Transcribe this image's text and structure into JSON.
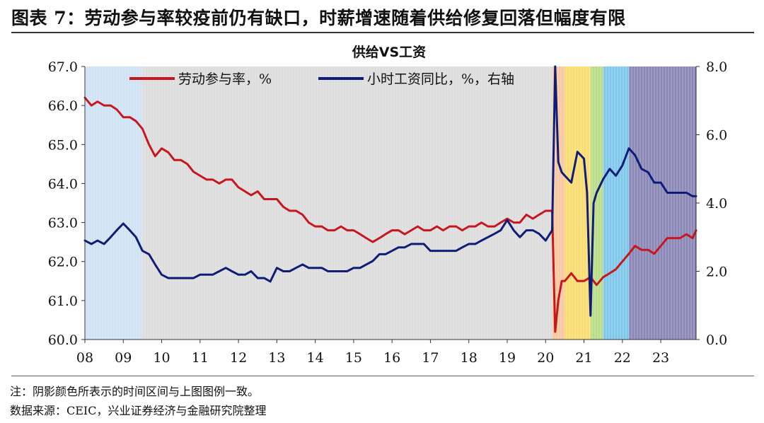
{
  "figure_title": "图表 7：劳动参与率较疫前仍有缺口，时薪增速随着供给修复回落但幅度有限",
  "note": "注：阴影颜色所表示的时间区间与上图图例一致。",
  "source": "数据来源：CEIC，兴业证券经济与金融研究院整理",
  "colors": {
    "lfpr": "#c8161e",
    "wage": "#0f1c78",
    "axis": "#333333"
  },
  "chart_data": {
    "type": "line",
    "title": "供给VS工资",
    "x_tick_labels": [
      "08",
      "09",
      "10",
      "11",
      "12",
      "13",
      "14",
      "15",
      "16",
      "17",
      "18",
      "19",
      "20",
      "21",
      "22",
      "23"
    ],
    "x_range": [
      2008.0,
      2023.92
    ],
    "y_left": {
      "range": [
        60.0,
        67.0
      ],
      "ticks": [
        "60.0",
        "61.0",
        "62.0",
        "63.0",
        "64.0",
        "65.0",
        "66.0",
        "67.0"
      ]
    },
    "y_right": {
      "range": [
        0.0,
        8.0
      ],
      "ticks": [
        "0.0",
        "2.0",
        "4.0",
        "6.0",
        "8.0"
      ],
      "label": "右轴"
    },
    "shading": [
      {
        "from": 2008.0,
        "to": 2009.5,
        "color": "#cfe2f3"
      },
      {
        "from": 2009.5,
        "to": 2020.17,
        "color": "#dcdcdc"
      },
      {
        "from": 2020.17,
        "to": 2020.5,
        "color": "#f6c7a0"
      },
      {
        "from": 2020.5,
        "to": 2021.17,
        "color": "#f9db6f"
      },
      {
        "from": 2021.17,
        "to": 2021.5,
        "color": "#b9dc88"
      },
      {
        "from": 2021.5,
        "to": 2022.17,
        "color": "#7ec7ea"
      },
      {
        "from": 2022.17,
        "to": 2023.92,
        "color": "#8a86b6"
      }
    ],
    "legend_position": "top",
    "series": [
      {
        "name": "劳动参与率，%",
        "axis": "left",
        "x": [
          2008.0,
          2008.17,
          2008.33,
          2008.5,
          2008.67,
          2008.83,
          2009.0,
          2009.17,
          2009.33,
          2009.5,
          2009.67,
          2009.83,
          2010.0,
          2010.17,
          2010.33,
          2010.5,
          2010.67,
          2010.83,
          2011.0,
          2011.17,
          2011.33,
          2011.5,
          2011.67,
          2011.83,
          2012.0,
          2012.17,
          2012.33,
          2012.5,
          2012.67,
          2012.83,
          2013.0,
          2013.17,
          2013.33,
          2013.5,
          2013.67,
          2013.83,
          2014.0,
          2014.17,
          2014.33,
          2014.5,
          2014.67,
          2014.83,
          2015.0,
          2015.17,
          2015.33,
          2015.5,
          2015.67,
          2015.83,
          2016.0,
          2016.17,
          2016.33,
          2016.5,
          2016.67,
          2016.83,
          2017.0,
          2017.17,
          2017.33,
          2017.5,
          2017.67,
          2017.83,
          2018.0,
          2018.17,
          2018.33,
          2018.5,
          2018.67,
          2018.83,
          2019.0,
          2019.17,
          2019.33,
          2019.5,
          2019.67,
          2019.83,
          2020.0,
          2020.17,
          2020.25,
          2020.33,
          2020.42,
          2020.5,
          2020.67,
          2020.83,
          2021.0,
          2021.17,
          2021.33,
          2021.5,
          2021.67,
          2021.83,
          2022.0,
          2022.17,
          2022.33,
          2022.5,
          2022.67,
          2022.83,
          2023.0,
          2023.17,
          2023.33,
          2023.5,
          2023.67,
          2023.83,
          2023.92
        ],
        "values": [
          66.2,
          66.0,
          66.1,
          66.0,
          66.0,
          65.9,
          65.7,
          65.7,
          65.6,
          65.4,
          65.0,
          64.7,
          64.9,
          64.8,
          64.6,
          64.6,
          64.5,
          64.3,
          64.2,
          64.1,
          64.1,
          64.0,
          64.1,
          64.1,
          63.9,
          63.8,
          63.7,
          63.8,
          63.6,
          63.6,
          63.6,
          63.4,
          63.3,
          63.3,
          63.2,
          63.0,
          62.9,
          62.9,
          62.8,
          62.8,
          62.9,
          62.8,
          62.8,
          62.7,
          62.6,
          62.5,
          62.6,
          62.7,
          62.8,
          62.8,
          62.7,
          62.8,
          62.9,
          62.8,
          62.8,
          62.9,
          62.8,
          62.9,
          62.9,
          62.8,
          62.9,
          62.9,
          63.0,
          62.9,
          62.9,
          63.0,
          63.1,
          63.0,
          63.0,
          63.2,
          63.1,
          63.2,
          63.3,
          63.3,
          60.2,
          61.0,
          61.5,
          61.5,
          61.7,
          61.5,
          61.5,
          61.6,
          61.4,
          61.6,
          61.7,
          61.8,
          62.0,
          62.2,
          62.4,
          62.3,
          62.3,
          62.2,
          62.4,
          62.6,
          62.6,
          62.6,
          62.7,
          62.6,
          62.8
        ]
      },
      {
        "name": "小时工资同比，%，右轴",
        "axis": "right",
        "x": [
          2008.0,
          2008.17,
          2008.33,
          2008.5,
          2008.67,
          2008.83,
          2009.0,
          2009.17,
          2009.33,
          2009.5,
          2009.67,
          2009.83,
          2010.0,
          2010.17,
          2010.33,
          2010.5,
          2010.67,
          2010.83,
          2011.0,
          2011.17,
          2011.33,
          2011.5,
          2011.67,
          2011.83,
          2012.0,
          2012.17,
          2012.33,
          2012.5,
          2012.67,
          2012.83,
          2013.0,
          2013.17,
          2013.33,
          2013.5,
          2013.67,
          2013.83,
          2014.0,
          2014.17,
          2014.33,
          2014.5,
          2014.67,
          2014.83,
          2015.0,
          2015.17,
          2015.33,
          2015.5,
          2015.67,
          2015.83,
          2016.0,
          2016.17,
          2016.33,
          2016.5,
          2016.67,
          2016.83,
          2017.0,
          2017.17,
          2017.33,
          2017.5,
          2017.67,
          2017.83,
          2018.0,
          2018.17,
          2018.33,
          2018.5,
          2018.67,
          2018.83,
          2019.0,
          2019.17,
          2019.33,
          2019.5,
          2019.67,
          2019.83,
          2020.0,
          2020.17,
          2020.25,
          2020.33,
          2020.42,
          2020.5,
          2020.67,
          2020.83,
          2021.0,
          2021.08,
          2021.17,
          2021.25,
          2021.33,
          2021.5,
          2021.67,
          2021.83,
          2022.0,
          2022.17,
          2022.25,
          2022.33,
          2022.5,
          2022.67,
          2022.83,
          2023.0,
          2023.17,
          2023.33,
          2023.5,
          2023.67,
          2023.83,
          2023.92
        ],
        "values": [
          2.9,
          2.8,
          2.9,
          2.8,
          3.0,
          3.2,
          3.4,
          3.2,
          3.0,
          2.6,
          2.5,
          2.2,
          1.9,
          1.8,
          1.8,
          1.8,
          1.8,
          1.8,
          1.9,
          1.9,
          1.9,
          2.0,
          2.1,
          2.0,
          1.9,
          1.9,
          2.0,
          1.8,
          1.8,
          1.7,
          2.1,
          2.0,
          2.0,
          2.1,
          2.2,
          2.1,
          2.1,
          2.1,
          2.0,
          2.0,
          2.0,
          2.0,
          2.1,
          2.1,
          2.2,
          2.3,
          2.5,
          2.5,
          2.6,
          2.7,
          2.7,
          2.8,
          2.8,
          2.8,
          2.6,
          2.6,
          2.6,
          2.6,
          2.6,
          2.7,
          2.8,
          2.8,
          2.9,
          3.0,
          3.1,
          3.2,
          3.5,
          3.2,
          3.0,
          3.2,
          3.2,
          3.1,
          2.9,
          3.2,
          8.0,
          5.2,
          4.9,
          4.8,
          4.6,
          5.5,
          5.3,
          4.3,
          0.7,
          4.0,
          4.3,
          4.7,
          5.0,
          4.8,
          5.1,
          5.6,
          5.5,
          5.4,
          5.0,
          4.9,
          4.6,
          4.6,
          4.3,
          4.3,
          4.3,
          4.3,
          4.2,
          4.2
        ]
      }
    ]
  }
}
